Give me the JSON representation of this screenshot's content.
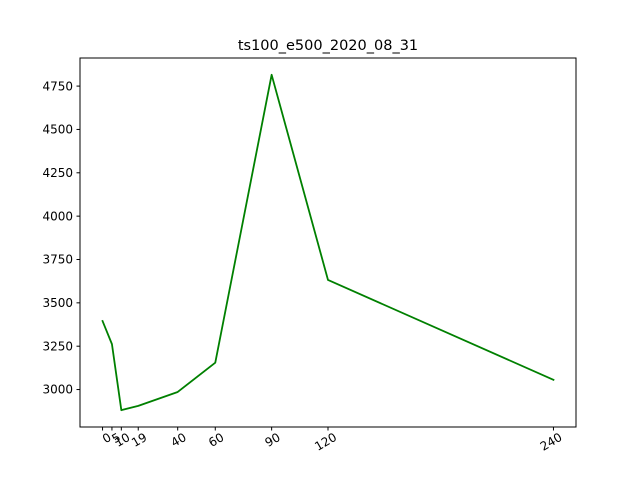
{
  "chart_data": {
    "type": "line",
    "title": "ts100_e500_2020_08_31",
    "xlabel": "",
    "ylabel": "",
    "x": [
      0,
      5,
      10,
      19,
      40,
      60,
      90,
      120,
      240
    ],
    "x_tick_labels": [
      "0",
      "5",
      "10",
      "19",
      "40",
      "60",
      "90",
      "120",
      "240"
    ],
    "series": [
      {
        "values": [
          3395,
          3262,
          2881,
          2906,
          2986,
          3155,
          4815,
          3632,
          3056
        ],
        "color": "#008000"
      }
    ],
    "y_ticks": [
      3000,
      3250,
      3500,
      3750,
      4000,
      4250,
      4500,
      4750
    ],
    "y_tick_labels": [
      "3000",
      "3250",
      "3500",
      "3750",
      "4000",
      "4250",
      "4500",
      "4750"
    ],
    "xlim": [
      -12,
      252
    ],
    "ylim": [
      2784,
      4912
    ],
    "x_tick_rotation": -30,
    "grid": false,
    "legend": "none"
  }
}
